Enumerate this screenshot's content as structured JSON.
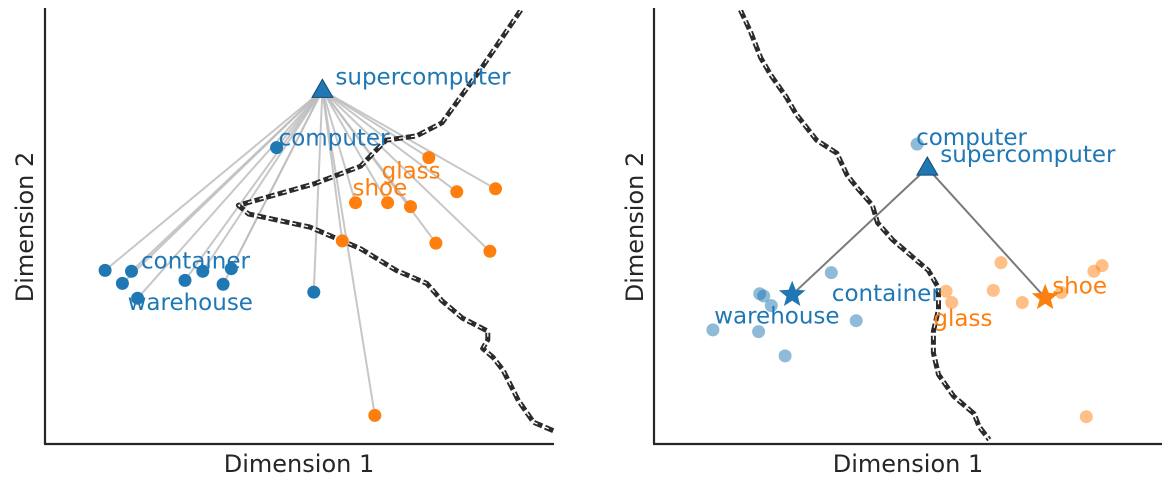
{
  "colors": {
    "blue": "#1f77b4",
    "orange": "#ff7f0e",
    "edge_line": "#bdbdbd",
    "boundary": "#2b2b2b",
    "axis": "#262626"
  },
  "chart_data": [
    {
      "type": "scatter",
      "xlabel": "Dimension 1",
      "ylabel": "Dimension 2",
      "xlim": [
        0,
        100
      ],
      "ylim": [
        0,
        100
      ],
      "ticks": "none",
      "grid": false,
      "legend": "none",
      "hub": {
        "label": "supercomputer",
        "x": 54.5,
        "y": 81.5,
        "marker": "triangle",
        "color": "blue"
      },
      "series": [
        {
          "color": "blue",
          "opacity": 1,
          "points": [
            {
              "x": 45.5,
              "y": 68.3,
              "label": "computer"
            },
            {
              "x": 11.8,
              "y": 40.0
            },
            {
              "x": 15.2,
              "y": 37.0
            },
            {
              "x": 17.0,
              "y": 39.8
            },
            {
              "x": 18.2,
              "y": 33.6,
              "label": "warehouse"
            },
            {
              "x": 27.5,
              "y": 37.7,
              "label": "container"
            },
            {
              "x": 31.0,
              "y": 39.8
            },
            {
              "x": 35.0,
              "y": 36.8
            },
            {
              "x": 36.6,
              "y": 40.4
            },
            {
              "x": 52.8,
              "y": 35.0
            }
          ]
        },
        {
          "color": "orange",
          "opacity": 1,
          "points": [
            {
              "x": 75.4,
              "y": 66.0
            },
            {
              "x": 80.9,
              "y": 58.1
            },
            {
              "x": 88.5,
              "y": 58.8
            },
            {
              "x": 61.0,
              "y": 55.6,
              "label": "shoe"
            },
            {
              "x": 67.3,
              "y": 55.6,
              "label": "glass"
            },
            {
              "x": 71.8,
              "y": 54.7
            },
            {
              "x": 58.4,
              "y": 46.8
            },
            {
              "x": 76.8,
              "y": 46.3
            },
            {
              "x": 87.4,
              "y": 44.4
            },
            {
              "x": 64.8,
              "y": 6.6
            }
          ]
        }
      ],
      "hub_edges": "all points",
      "decision_boundary": [
        [
          93.5,
          100
        ],
        [
          86,
          87
        ],
        [
          78,
          74
        ],
        [
          73,
          71
        ],
        [
          67,
          70
        ],
        [
          62,
          64
        ],
        [
          53,
          60
        ],
        [
          47,
          58
        ],
        [
          38,
          55
        ],
        [
          40,
          53
        ],
        [
          52,
          50
        ],
        [
          62,
          45
        ],
        [
          69,
          40
        ],
        [
          75,
          37
        ],
        [
          78,
          33
        ],
        [
          82,
          29
        ],
        [
          87,
          26
        ],
        [
          87,
          24
        ],
        [
          86,
          22
        ],
        [
          88,
          20
        ],
        [
          90,
          17
        ],
        [
          93,
          10
        ],
        [
          96,
          5
        ],
        [
          100,
          3
        ]
      ]
    },
    {
      "type": "scatter",
      "xlabel": "Dimension 1",
      "ylabel": "Dimension 2",
      "xlim": [
        0,
        100
      ],
      "ylim": [
        0,
        100
      ],
      "ticks": "none",
      "grid": false,
      "legend": "none",
      "hub": {
        "label": "supercomputer",
        "x": 53.8,
        "y": 63.6,
        "marker": "triangle",
        "color": "blue"
      },
      "anchors": [
        {
          "label": "warehouse",
          "x": 27.2,
          "y": 34.4,
          "marker": "star",
          "color": "blue"
        },
        {
          "label": "shoe",
          "x": 77.0,
          "y": 33.7,
          "marker": "star",
          "color": "orange"
        }
      ],
      "anchor_labels": [
        {
          "label": "container",
          "x": 35.0,
          "y": 33.0,
          "color": "blue"
        },
        {
          "label": "glass",
          "x": 55.0,
          "y": 27.2,
          "color": "orange"
        }
      ],
      "series": [
        {
          "color": "blue",
          "opacity": 0.5,
          "points": [
            {
              "x": 51.8,
              "y": 69.1,
              "label": "computer"
            },
            {
              "x": 34.9,
              "y": 39.5
            },
            {
              "x": 20.8,
              "y": 34.6
            },
            {
              "x": 21.6,
              "y": 34.1
            },
            {
              "x": 23.1,
              "y": 31.9
            },
            {
              "x": 11.6,
              "y": 26.3
            },
            {
              "x": 20.6,
              "y": 25.9
            },
            {
              "x": 39.8,
              "y": 28.4
            },
            {
              "x": 25.8,
              "y": 20.3
            }
          ]
        },
        {
          "color": "orange",
          "opacity": 0.5,
          "points": [
            {
              "x": 68.3,
              "y": 41.8
            },
            {
              "x": 88.2,
              "y": 41.1
            },
            {
              "x": 86.6,
              "y": 39.8
            },
            {
              "x": 57.5,
              "y": 35.2
            },
            {
              "x": 66.8,
              "y": 35.4
            },
            {
              "x": 80.2,
              "y": 34.9
            },
            {
              "x": 72.5,
              "y": 32.6
            },
            {
              "x": 58.6,
              "y": 32.6
            },
            {
              "x": 85.1,
              "y": 6.3
            }
          ]
        }
      ],
      "hub_edges": "anchors",
      "decision_boundary": [
        [
          17,
          100
        ],
        [
          19,
          95
        ],
        [
          21,
          89
        ],
        [
          23,
          85
        ],
        [
          26,
          80
        ],
        [
          28,
          76
        ],
        [
          32,
          70
        ],
        [
          36,
          67
        ],
        [
          38,
          62
        ],
        [
          40,
          59
        ],
        [
          43,
          55
        ],
        [
          44,
          51
        ],
        [
          47,
          47
        ],
        [
          50,
          44
        ],
        [
          54,
          40
        ],
        [
          56,
          36
        ],
        [
          56,
          31
        ],
        [
          55,
          26
        ],
        [
          55,
          21
        ],
        [
          56,
          16
        ],
        [
          59,
          11
        ],
        [
          63,
          7
        ],
        [
          64,
          4
        ],
        [
          66,
          1
        ]
      ]
    }
  ]
}
